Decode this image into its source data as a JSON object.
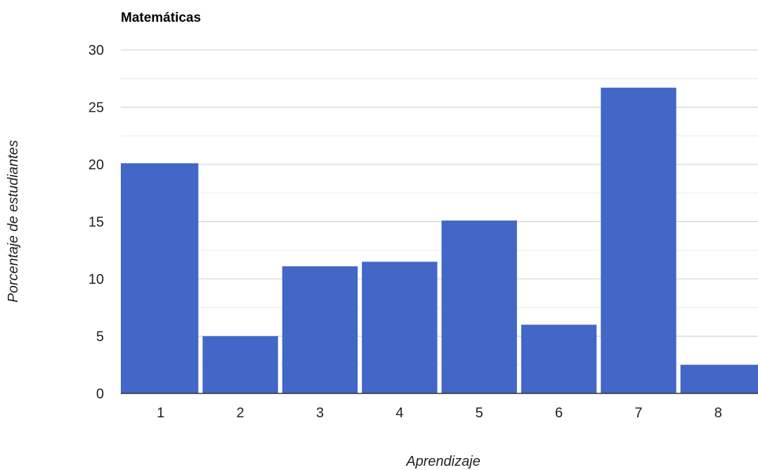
{
  "chart_data": {
    "type": "bar",
    "title": "Matemáticas",
    "xlabel": "Aprendizaje",
    "ylabel": "Porcentaje de estudiantes",
    "categories": [
      "1",
      "2",
      "3",
      "4",
      "5",
      "6",
      "7",
      "8"
    ],
    "values": [
      20.1,
      5.0,
      11.1,
      11.5,
      15.1,
      6.0,
      26.7,
      2.5
    ],
    "ylim": [
      0,
      30
    ],
    "yticks": [
      "0",
      "5",
      "10",
      "15",
      "20",
      "25",
      "30"
    ],
    "grid": true,
    "bar_color": "#4267c7"
  }
}
